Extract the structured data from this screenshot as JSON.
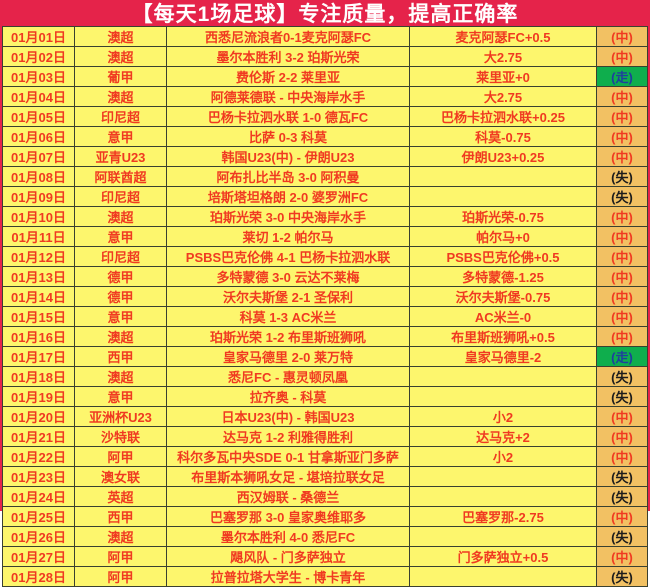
{
  "title": "【每天1场足球】专注质量，提高正确率",
  "colors": {
    "frame_red": "#e5234a",
    "cell_yellow": "#fdf66d",
    "cell_orange": "#f2c163",
    "push_green": "#0fae4d",
    "text_red": "#f03a21",
    "miss_text": "#1c1c1c",
    "push_text": "#1e3f9d",
    "grid_border": "#3a4030",
    "title_text": "#ffffff"
  },
  "result_legend": {
    "hit": "(中)",
    "push": "(走)",
    "miss": "(失)"
  },
  "rows": [
    {
      "date": "01月01日",
      "league": "澳超",
      "match": "西悉尼流浪者0-1麦克阿瑟FC",
      "bet": "麦克阿瑟FC+0.5",
      "result": "(中)",
      "status": "hit"
    },
    {
      "date": "01月02日",
      "league": "澳超",
      "match": "墨尔本胜利 3-2 珀斯光荣",
      "bet": "大2.75",
      "result": "(中)",
      "status": "hit"
    },
    {
      "date": "01月03日",
      "league": "葡甲",
      "match": "费伦斯 2-2 莱里亚",
      "bet": "莱里亚+0",
      "result": "(走)",
      "status": "push"
    },
    {
      "date": "01月04日",
      "league": "澳超",
      "match": "阿德莱德联 - 中央海岸水手",
      "bet": "大2.75",
      "result": "(中)",
      "status": "hit"
    },
    {
      "date": "01月05日",
      "league": "印尼超",
      "match": "巴杨卡拉泗水联 1-0 德瓦FC",
      "bet": "巴杨卡拉泗水联+0.25",
      "result": "(中)",
      "status": "hit"
    },
    {
      "date": "01月06日",
      "league": "意甲",
      "match": "比萨 0-3 科莫",
      "bet": "科莫-0.75",
      "result": "(中)",
      "status": "hit"
    },
    {
      "date": "01月07日",
      "league": "亚青U23",
      "match": "韩国U23(中) - 伊朗U23",
      "bet": "伊朗U23+0.25",
      "result": "(中)",
      "status": "hit"
    },
    {
      "date": "01月08日",
      "league": "阿联酋超",
      "match": "阿布扎比半岛 3-0 阿积曼",
      "bet": "",
      "result": "(失)",
      "status": "miss"
    },
    {
      "date": "01月09日",
      "league": "印尼超",
      "match": "培斯塔坦格朗 2-0 婆罗洲FC",
      "bet": "",
      "result": "(失)",
      "status": "miss"
    },
    {
      "date": "01月10日",
      "league": "澳超",
      "match": "珀斯光荣 3-0 中央海岸水手",
      "bet": "珀斯光荣-0.75",
      "result": "(中)",
      "status": "hit"
    },
    {
      "date": "01月11日",
      "league": "意甲",
      "match": "莱切 1-2 帕尔马",
      "bet": "帕尔马+0",
      "result": "(中)",
      "status": "hit"
    },
    {
      "date": "01月12日",
      "league": "印尼超",
      "match": "PSBS巴克伦佛 4-1 巴杨卡拉泗水联",
      "bet": "PSBS巴克伦佛+0.5",
      "result": "(中)",
      "status": "hit"
    },
    {
      "date": "01月13日",
      "league": "德甲",
      "match": "多特蒙德 3-0 云达不莱梅",
      "bet": "多特蒙德-1.25",
      "result": "(中)",
      "status": "hit"
    },
    {
      "date": "01月14日",
      "league": "德甲",
      "match": "沃尔夫斯堡 2-1 圣保利",
      "bet": "沃尔夫斯堡-0.75",
      "result": "(中)",
      "status": "hit"
    },
    {
      "date": "01月15日",
      "league": "意甲",
      "match": "科莫 1-3 AC米兰",
      "bet": "AC米兰-0",
      "result": "(中)",
      "status": "hit"
    },
    {
      "date": "01月16日",
      "league": "澳超",
      "match": "珀斯光荣 1-2 布里斯班狮吼",
      "bet": "布里斯班狮吼+0.5",
      "result": "(中)",
      "status": "hit"
    },
    {
      "date": "01月17日",
      "league": "西甲",
      "match": "皇家马德里 2-0 莱万特",
      "bet": "皇家马德里-2",
      "result": "(走)",
      "status": "push"
    },
    {
      "date": "01月18日",
      "league": "澳超",
      "match": "悉尼FC - 惠灵顿凤凰",
      "bet": "",
      "result": "(失)",
      "status": "miss"
    },
    {
      "date": "01月19日",
      "league": "意甲",
      "match": "拉齐奥 - 科莫",
      "bet": "",
      "result": "(失)",
      "status": "miss"
    },
    {
      "date": "01月20日",
      "league": "亚洲杯U23",
      "match": "日本U23(中) - 韩国U23",
      "bet": "小2",
      "result": "(中)",
      "status": "hit"
    },
    {
      "date": "01月21日",
      "league": "沙特联",
      "match": "达马克 1-2 利雅得胜利",
      "bet": "达马克+2",
      "result": "(中)",
      "status": "hit"
    },
    {
      "date": "01月22日",
      "league": "阿甲",
      "match": "科尔多瓦中央SDE 0-1 甘拿斯亚门多萨",
      "bet": "小2",
      "result": "(中)",
      "status": "hit"
    },
    {
      "date": "01月23日",
      "league": "澳女联",
      "match": "布里斯本狮吼女足 - 堪培拉联女足",
      "bet": "",
      "result": "(失)",
      "status": "miss"
    },
    {
      "date": "01月24日",
      "league": "英超",
      "match": "西汉姆联 - 桑德兰",
      "bet": "",
      "result": "(失)",
      "status": "miss"
    },
    {
      "date": "01月25日",
      "league": "西甲",
      "match": "巴塞罗那 3-0 皇家奥维耶多",
      "bet": "巴塞罗那-2.75",
      "result": "(中)",
      "status": "hit"
    },
    {
      "date": "01月26日",
      "league": "澳超",
      "match": "墨尔本胜利 4-0 悉尼FC",
      "bet": "",
      "result": "(失)",
      "status": "miss"
    },
    {
      "date": "01月27日",
      "league": "阿甲",
      "match": "飓风队 - 门多萨独立",
      "bet": "门多萨独立+0.5",
      "result": "(中)",
      "status": "hit"
    },
    {
      "date": "01月28日",
      "league": "阿甲",
      "match": "拉普拉塔大学生 - 博卡青年",
      "bet": "",
      "result": "(失)",
      "status": "miss"
    }
  ]
}
